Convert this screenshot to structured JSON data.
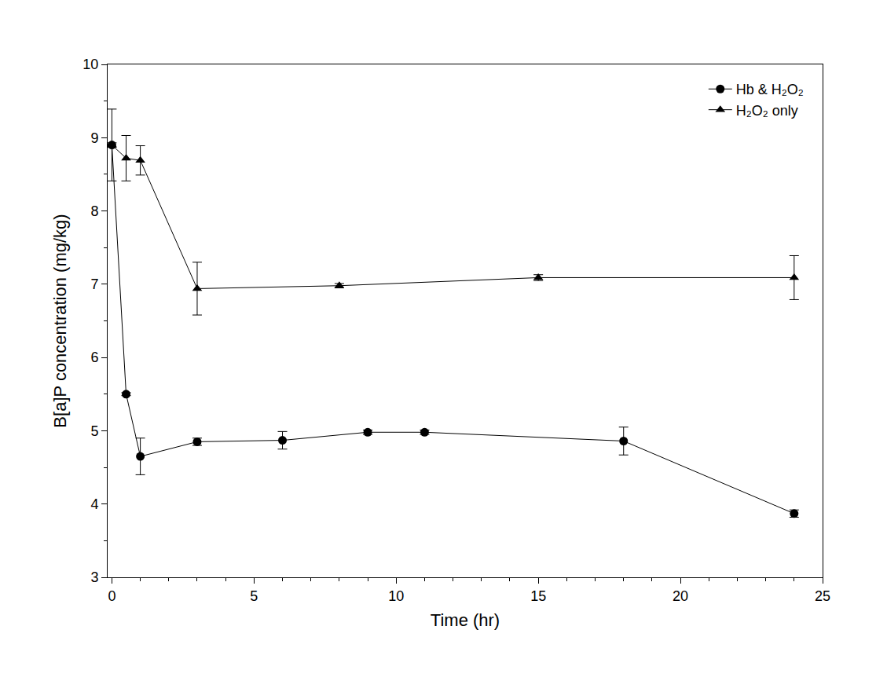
{
  "chart_data": {
    "type": "line",
    "x_label": "Time (hr)",
    "y_label": "B[a]P concentration (mg/kg)",
    "xlim": [
      -0.15,
      25
    ],
    "xticks": [
      0,
      5,
      10,
      15,
      20,
      25
    ],
    "ylim": [
      3,
      10
    ],
    "yticks": [
      3,
      4,
      5,
      6,
      7,
      8,
      9,
      10
    ],
    "grid": false,
    "legend": "upper right",
    "series": [
      {
        "name": "Hb & H₂O₂",
        "color": "#000000",
        "marker": "circle",
        "line_style": "solid",
        "x": [
          0,
          0.5,
          1,
          3,
          6,
          9,
          11,
          18,
          24
        ],
        "values": [
          8.9,
          5.5,
          4.65,
          4.85,
          4.87,
          4.98,
          4.98,
          4.86,
          3.87
        ],
        "error": [
          0.49,
          0.02,
          0.25,
          0.05,
          0.12,
          0.03,
          0.03,
          0.19,
          0.05
        ]
      },
      {
        "name": "H₂O₂ only",
        "color": "#000000",
        "marker": "triangle-up",
        "line_style": "solid",
        "x": [
          0,
          0.5,
          1,
          3,
          8,
          15,
          24
        ],
        "values": [
          8.9,
          8.72,
          8.69,
          6.94,
          6.98,
          7.09,
          7.09
        ],
        "error": [
          0.03,
          0.31,
          0.2,
          0.36,
          0.03,
          0.04,
          0.3
        ]
      }
    ]
  }
}
